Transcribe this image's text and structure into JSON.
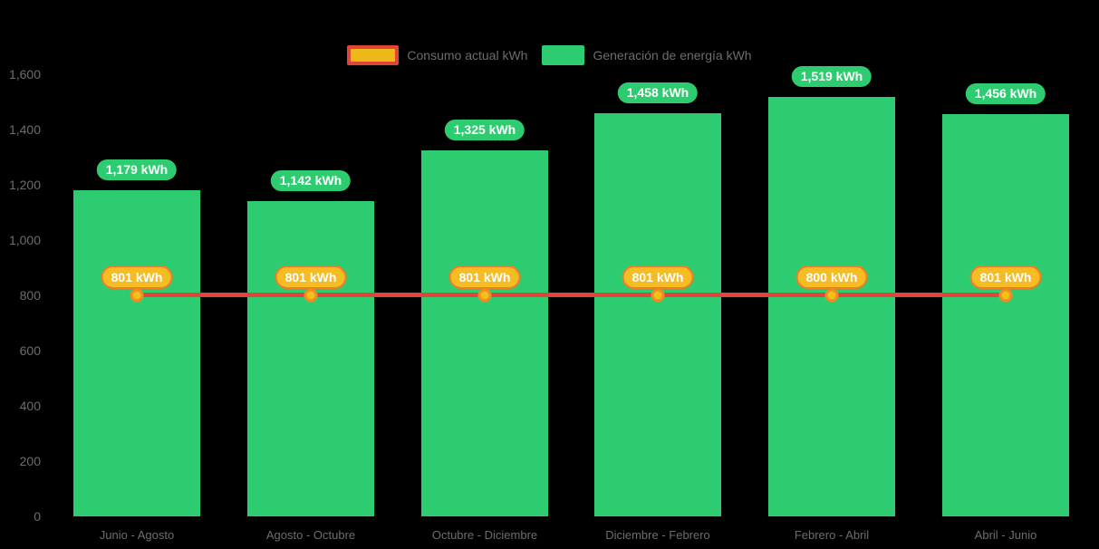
{
  "colors": {
    "background": "#000000",
    "bar_green": "#2ecc71",
    "line_red": "#e2453c",
    "marker_gold": "#f2c019",
    "marker_ring_orange": "#ef8e1e",
    "consumption_pill_gold": "#f5bc23",
    "consumption_pill_border": "#ef7d23",
    "legend_swatch_border_red": "#e04538",
    "legend_swatch_gold": "#edb919",
    "axis_text_gray": "#6b6d70",
    "pill_text_white": "#ffffff"
  },
  "legend": {
    "items": [
      {
        "id": "consumo",
        "label": "Consumo actual kWh",
        "swatch": "gold-with-red-border"
      },
      {
        "id": "generacion",
        "label": "Generación de energía kWh",
        "swatch": "green"
      }
    ]
  },
  "chart_data": {
    "type": "bar",
    "title": "",
    "xlabel": "",
    "ylabel": "",
    "categories": [
      "Junio - Agosto",
      "Agosto - Octubre",
      "Octubre - Diciembre",
      "Diciembre - Febrero",
      "Febrero - Abril",
      "Abril - Junio"
    ],
    "series": [
      {
        "name": "Generación de energía kWh",
        "type": "bar",
        "color": "#2ecc71",
        "values": [
          1179,
          1142,
          1325,
          1458,
          1519,
          1456
        ],
        "labels": [
          "1,179 kWh",
          "1,142 kWh",
          "1,325 kWh",
          "1,458 kWh",
          "1,519 kWh",
          "1,456 kWh"
        ]
      },
      {
        "name": "Consumo actual kWh",
        "type": "line",
        "color": "#e2453c",
        "values": [
          801,
          801,
          801,
          801,
          800,
          801
        ],
        "labels": [
          "801 kWh",
          "801 kWh",
          "801 kWh",
          "801 kWh",
          "800 kWh",
          "801 kWh"
        ]
      }
    ],
    "y_axis": {
      "min": 0,
      "max": 1600,
      "step": 200,
      "tick_labels": [
        "0",
        "200",
        "400",
        "600",
        "800",
        "1,000",
        "1,200",
        "1,400",
        "1,600"
      ]
    },
    "grid": false,
    "legend_position": "top-center"
  }
}
